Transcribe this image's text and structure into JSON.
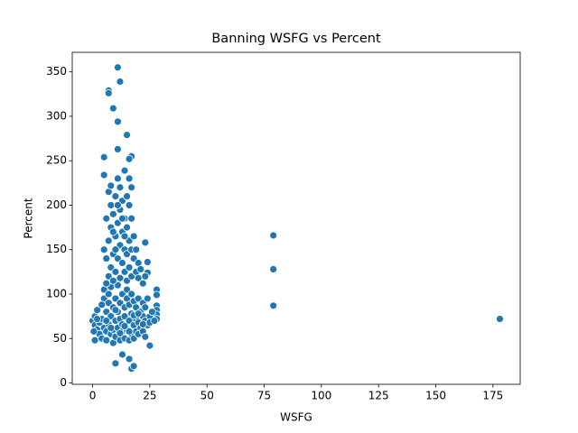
{
  "chart_data": {
    "type": "scatter",
    "title": "Banning WSFG vs Percent",
    "x_label": "WSFG",
    "y_label": "Percent",
    "color": "#1f77b4",
    "x": [
      11,
      7,
      7,
      12,
      9,
      11,
      15,
      11,
      5,
      17,
      16,
      5,
      14,
      79,
      79,
      79,
      178,
      17,
      18,
      10,
      16,
      13,
      25,
      1,
      23,
      24,
      24,
      28,
      28,
      28,
      28,
      28,
      28,
      0,
      1,
      1,
      2,
      2,
      3,
      3,
      4,
      4,
      5,
      5,
      5,
      6,
      6,
      6,
      7,
      7,
      7,
      8,
      8,
      8,
      9,
      9,
      9,
      10,
      10,
      10,
      11,
      11,
      11,
      12,
      12,
      12,
      13,
      13,
      13,
      14,
      14,
      14,
      15,
      15,
      15,
      16,
      16,
      16,
      17,
      17,
      17,
      18,
      18,
      18,
      19,
      19,
      19,
      20,
      20,
      20,
      21,
      21,
      22,
      22,
      22,
      23,
      23,
      23,
      24,
      24,
      25,
      25,
      26,
      27,
      0.5,
      2,
      4,
      6,
      8,
      10,
      12,
      14,
      16,
      18,
      20,
      22,
      5,
      6,
      6,
      7,
      7,
      7,
      8,
      8,
      8,
      8,
      9,
      9,
      9,
      10,
      10,
      10,
      11,
      11,
      11,
      12,
      12,
      12,
      12,
      13,
      13,
      13,
      14,
      14,
      14,
      15,
      15,
      15,
      15,
      16,
      16,
      16,
      16,
      17,
      17,
      17,
      18,
      18,
      19,
      19,
      20,
      20,
      21,
      22,
      23,
      6,
      10,
      14,
      17,
      11,
      9,
      13
    ],
    "values": [
      355,
      329,
      326,
      339,
      309,
      294,
      279,
      263,
      254,
      255,
      252,
      234,
      239,
      166,
      128,
      87,
      72,
      16,
      19,
      22,
      27,
      32,
      42,
      48,
      158,
      136,
      124,
      105,
      99,
      87,
      82,
      77,
      72,
      70,
      65,
      75,
      60,
      82,
      55,
      68,
      72,
      50,
      95,
      62,
      105,
      58,
      80,
      48,
      90,
      66,
      100,
      55,
      75,
      108,
      85,
      60,
      45,
      70,
      95,
      52,
      80,
      62,
      110,
      48,
      90,
      72,
      58,
      100,
      66,
      85,
      50,
      75,
      95,
      60,
      105,
      70,
      48,
      88,
      55,
      78,
      100,
      65,
      92,
      50,
      72,
      85,
      58,
      68,
      95,
      55,
      80,
      62,
      75,
      90,
      58,
      70,
      85,
      52,
      65,
      95,
      75,
      68,
      80,
      70,
      58,
      72,
      88,
      70,
      62,
      82,
      56,
      64,
      58,
      76,
      78,
      66,
      150,
      140,
      185,
      120,
      160,
      215,
      130,
      175,
      200,
      222,
      115,
      145,
      190,
      125,
      165,
      210,
      140,
      180,
      230,
      118,
      155,
      195,
      220,
      135,
      170,
      205,
      125,
      150,
      185,
      115,
      145,
      175,
      210,
      130,
      160,
      200,
      230,
      120,
      150,
      185,
      140,
      165,
      125,
      150,
      135,
      118,
      128,
      112,
      120,
      112,
      150,
      165,
      220,
      200,
      170,
      185
    ],
    "xlim": [
      -8.9,
      186.9
    ],
    "ylim": [
      -1.5,
      372
    ],
    "xticks": [
      0,
      25,
      50,
      75,
      100,
      125,
      150,
      175
    ],
    "yticks": [
      0,
      50,
      100,
      150,
      200,
      250,
      300,
      350
    ]
  }
}
